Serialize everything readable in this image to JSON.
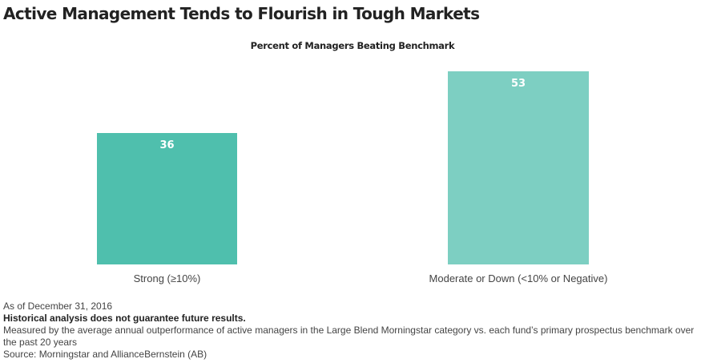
{
  "header": {
    "title": "Active Management Tends to Flourish in Tough Markets",
    "subtitle": "Percent of Managers Beating Benchmark"
  },
  "chart_data": {
    "type": "bar",
    "title": "Active Management Tends to Flourish in Tough Markets",
    "subtitle": "Percent of Managers Beating Benchmark",
    "categories": [
      "Strong (≥10%)",
      "Moderate or Down (<10% or Negative)"
    ],
    "values": [
      36,
      53
    ],
    "data_labels": [
      "36",
      "53"
    ],
    "colors": [
      "#4fbfad",
      "#7dcfc2"
    ],
    "xlabel": "",
    "ylabel": "",
    "ylim": [
      0,
      55
    ],
    "grid": false,
    "legend": null
  },
  "bars": [
    {
      "label": "36",
      "category": "Strong (≥10%)",
      "color": "#4fbfad"
    },
    {
      "label": "53",
      "category": "Moderate or Down (<10% or Negative)",
      "color": "#7dcfc2"
    }
  ],
  "footnotes": {
    "date": "As of December 31, 2016",
    "disclaimer": "Historical analysis does not guarantee future results.",
    "method": "Measured by the average annual outperformance of active managers in the Large Blend Morningstar category vs. each fund’s primary prospectus benchmark over the past 20 years",
    "source": "Source: Morningstar and AllianceBernstein (AB)"
  }
}
